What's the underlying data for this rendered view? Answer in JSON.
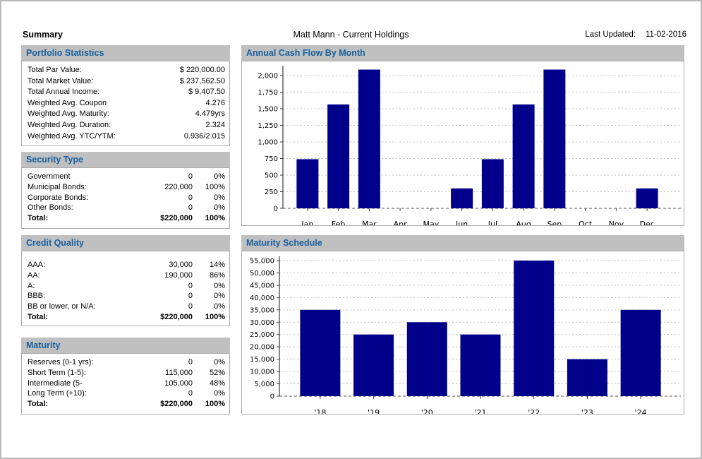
{
  "header": {
    "title": "Summary",
    "subject": "Matt Mann - Current Holdings",
    "last_updated_label": "Last Updated:",
    "last_updated_value": "11-02-2016"
  },
  "colors": {
    "bar": "#00008B",
    "panel_header_bg": "#C0C0C0",
    "panel_header_text": "#17609F",
    "grid": "#c0c0c0",
    "axis": "#3a3a3a"
  },
  "panels": {
    "portfolio_statistics": {
      "title": "Portfolio Statistics",
      "rows": [
        {
          "label": "Total Par Value:",
          "value": "$ 220,000.00"
        },
        {
          "label": "Total Market Value:",
          "value": "$ 237,562.50"
        },
        {
          "label": "Total Annual Income:",
          "value": "$ 9,407.50"
        },
        {
          "label": "Weighted Avg. Coupon",
          "value": "4.276"
        },
        {
          "label": "Weighted Avg. Maturity:",
          "value": "4.479yrs"
        },
        {
          "label": "Weighted Avg. Duration:",
          "value": "2.324"
        },
        {
          "label": "Weighted Avg. YTC/YTM:",
          "value": "0.936/2.015"
        }
      ]
    },
    "security_type": {
      "title": "Security Type",
      "rows": [
        {
          "label": "Government",
          "amount": "0",
          "pct": "0%"
        },
        {
          "label": "Municipal Bonds:",
          "amount": "220,000",
          "pct": "100%"
        },
        {
          "label": "Corporate Bonds:",
          "amount": "0",
          "pct": "0%"
        },
        {
          "label": "Other Bonds:",
          "amount": "0",
          "pct": "0%"
        },
        {
          "label": "Total:",
          "amount": "$220,000",
          "pct": "100%",
          "bold": true
        }
      ]
    },
    "credit_quality": {
      "title": "Credit Quality",
      "rows": [
        {
          "label": "AAA:",
          "amount": "30,000",
          "pct": "14%"
        },
        {
          "label": "AA:",
          "amount": "190,000",
          "pct": "86%"
        },
        {
          "label": "A:",
          "amount": "0",
          "pct": "0%"
        },
        {
          "label": "BBB:",
          "amount": "0",
          "pct": "0%"
        },
        {
          "label": "BB or lower, or N/A:",
          "amount": "0",
          "pct": "0%"
        },
        {
          "label": "Total:",
          "amount": "$220,000",
          "pct": "100%",
          "bold": true
        }
      ]
    },
    "maturity": {
      "title": "Maturity",
      "rows": [
        {
          "label": "Reserves (0-1 yrs):",
          "amount": "0",
          "pct": "0%"
        },
        {
          "label": "Short Term (1-5):",
          "amount": "115,000",
          "pct": "52%"
        },
        {
          "label": "Intermediate (5-",
          "amount": "105,000",
          "pct": "48%"
        },
        {
          "label": "Long Term (+10):",
          "amount": "0",
          "pct": "0%"
        },
        {
          "label": "Total:",
          "amount": "$220,000",
          "pct": "100%",
          "bold": true
        }
      ]
    }
  },
  "chart_data": [
    {
      "id": "annual_cash_flow",
      "type": "bar",
      "title": "Annual Cash Flow By Month",
      "categories": [
        "Jan",
        "Feb",
        "Mar",
        "Apr",
        "May",
        "Jun",
        "Jul",
        "Aug",
        "Sep",
        "Oct",
        "Nov",
        "Dec"
      ],
      "values": [
        740,
        1565,
        2090,
        0,
        0,
        300,
        740,
        1565,
        2090,
        0,
        0,
        300
      ],
      "xlabel": "",
      "ylabel": "",
      "ylim": [
        0,
        2000
      ],
      "ytick_step": 250,
      "grid": true,
      "legend": "none",
      "bar_color": "#00008B"
    },
    {
      "id": "maturity_schedule",
      "type": "bar",
      "title": "Maturity Schedule",
      "categories": [
        "'18",
        "'19",
        "'20",
        "'21",
        "'22",
        "'23",
        "'24"
      ],
      "values": [
        35000,
        25000,
        30000,
        25000,
        55000,
        15000,
        35000
      ],
      "xlabel": "",
      "ylabel": "",
      "ylim": [
        0,
        55000
      ],
      "ytick_step": 5000,
      "grid": true,
      "legend": "none",
      "bar_color": "#00008B"
    }
  ]
}
